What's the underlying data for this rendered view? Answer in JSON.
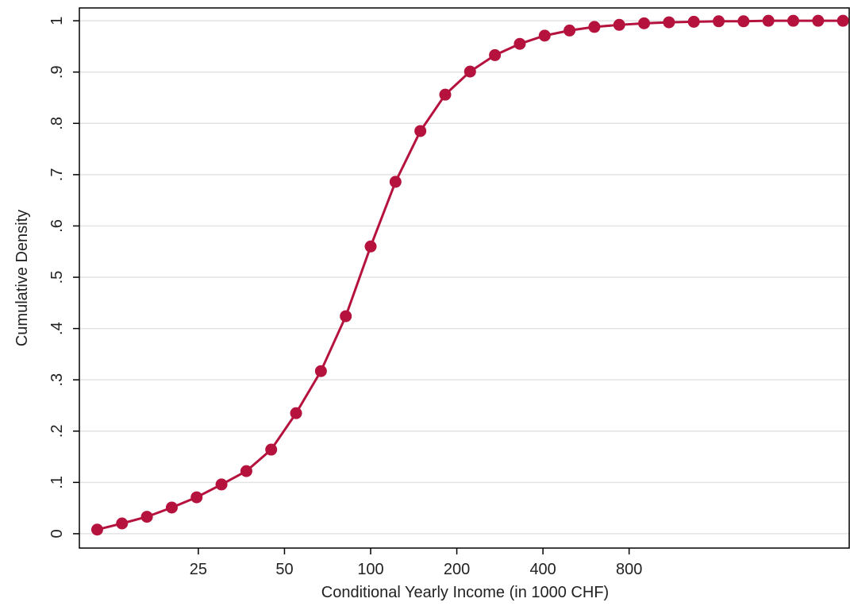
{
  "chart_data": {
    "type": "line",
    "x_label": "Conditional Yearly Income (in 1000 CHF)",
    "y_label": "Cumulative Density",
    "x_scale": "log",
    "x": [
      11.08,
      13.53,
      16.53,
      20.19,
      24.66,
      30.12,
      36.79,
      44.93,
      54.88,
      67.03,
      81.87,
      100,
      122.14,
      149.18,
      182.21,
      222.55,
      271.83,
      332.01,
      405.52,
      495.3,
      604.96,
      738.91,
      902.5,
      1102.32,
      1346.38,
      1644.47,
      2008.55,
      2453.25,
      2996.38,
      3659.82,
      4470.12
    ],
    "series": [
      {
        "name": "Cumulative Density",
        "color": "#b5123e",
        "values": [
          0.008,
          0.02,
          0.033,
          0.051,
          0.071,
          0.096,
          0.122,
          0.164,
          0.235,
          0.317,
          0.424,
          0.56,
          0.686,
          0.785,
          0.856,
          0.901,
          0.933,
          0.955,
          0.971,
          0.981,
          0.988,
          0.992,
          0.995,
          0.997,
          0.998,
          0.999,
          0.999,
          1,
          1,
          1,
          1
        ]
      }
    ],
    "xlim": [
      9.6,
      4700
    ],
    "xticks": [
      25,
      50,
      100,
      200,
      400,
      800
    ],
    "ylim": [
      -0.028,
      1.025
    ],
    "yticks": [
      0,
      {
        "value": 0.1,
        "label": ".1"
      },
      {
        "value": 0.2,
        "label": ".2"
      },
      {
        "value": 0.3,
        "label": ".3"
      },
      {
        "value": 0.4,
        "label": ".4"
      },
      {
        "value": 0.5,
        "label": ".5"
      },
      {
        "value": 0.6,
        "label": ".6"
      },
      {
        "value": 0.7,
        "label": ".7"
      },
      {
        "value": 0.8,
        "label": ".8"
      },
      {
        "value": 0.9,
        "label": ".9"
      },
      1
    ],
    "grid": true
  }
}
